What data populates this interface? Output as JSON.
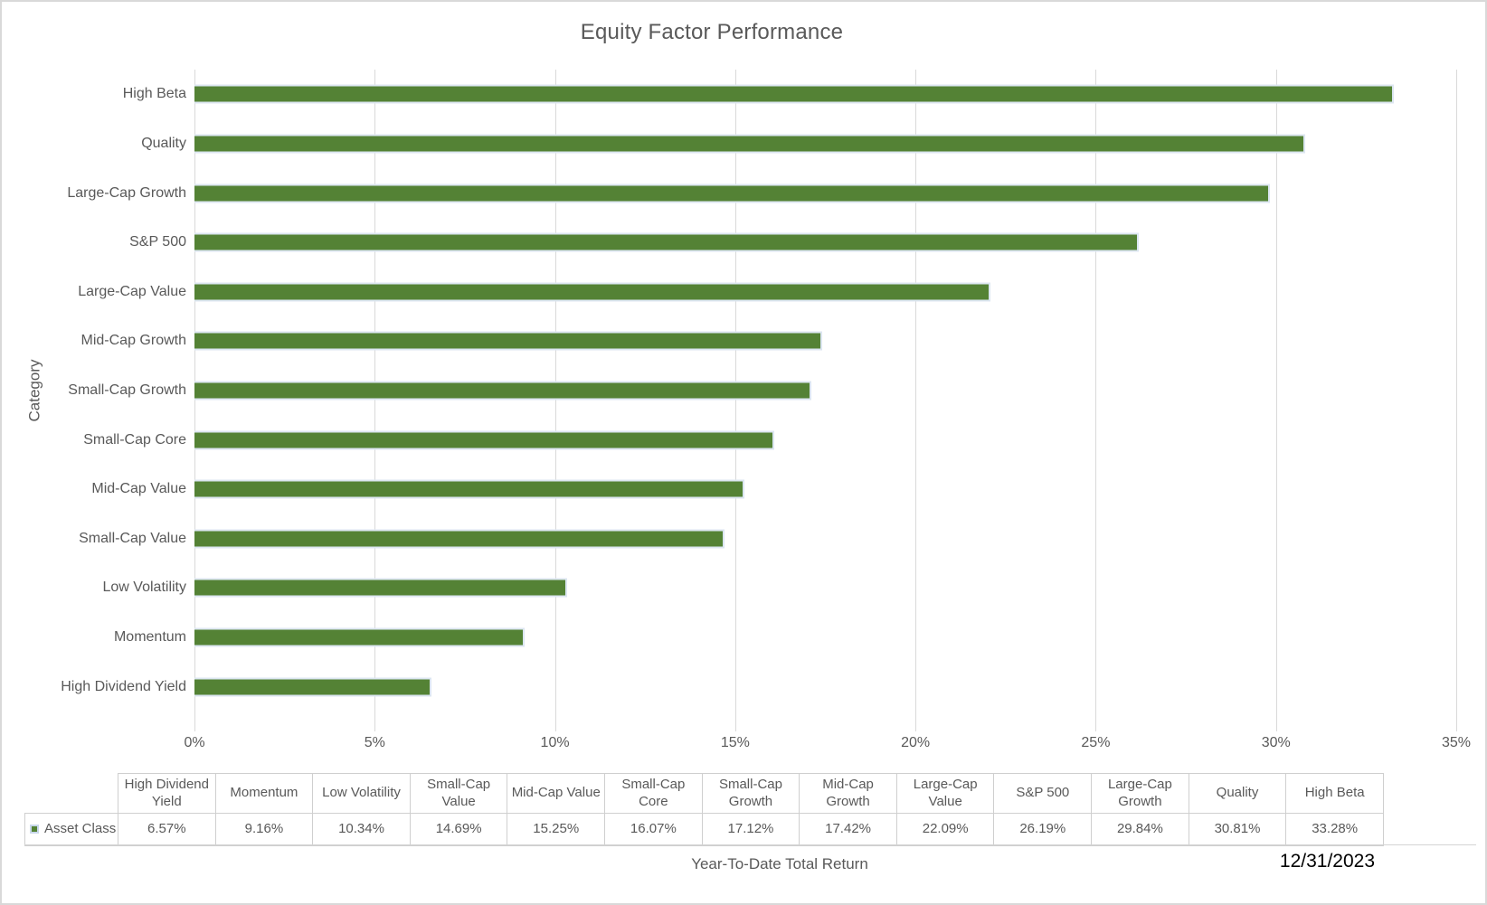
{
  "chart_data": {
    "type": "bar",
    "orientation": "horizontal",
    "title": "Equity Factor Performance",
    "xlabel": "Year-To-Date Total Return",
    "ylabel": "Category",
    "series_name": "Asset Class",
    "categories": [
      "High Beta",
      "Quality",
      "Large-Cap Growth",
      "S&P 500",
      "Large-Cap Value",
      "Mid-Cap Growth",
      "Small-Cap Growth",
      "Small-Cap Core",
      "Mid-Cap Value",
      "Small-Cap Value",
      "Low Volatility",
      "Momentum",
      "High Dividend Yield"
    ],
    "values": [
      33.28,
      30.81,
      29.84,
      26.19,
      22.09,
      17.42,
      17.12,
      16.07,
      15.25,
      14.69,
      10.34,
      9.16,
      6.57
    ],
    "xlim": [
      0,
      35
    ],
    "x_ticks": [
      "0%",
      "5%",
      "10%",
      "15%",
      "20%",
      "25%",
      "30%",
      "35%"
    ],
    "gridlines": true,
    "legend_position": "table-left"
  },
  "table": {
    "legend_label": "Asset Class",
    "columns": [
      {
        "label": "High Dividend Yield",
        "value": "6.57%"
      },
      {
        "label": "Momentum",
        "value": "9.16%"
      },
      {
        "label": "Low Volatility",
        "value": "10.34%"
      },
      {
        "label": "Small-Cap Value",
        "value": "14.69%"
      },
      {
        "label": "Mid-Cap Value",
        "value": "15.25%"
      },
      {
        "label": "Small-Cap Core",
        "value": "16.07%"
      },
      {
        "label": "Small-Cap Growth",
        "value": "17.12%"
      },
      {
        "label": "Mid-Cap Growth",
        "value": "17.42%"
      },
      {
        "label": "Large-Cap Value",
        "value": "22.09%"
      },
      {
        "label": "S&P 500",
        "value": "26.19%"
      },
      {
        "label": "Large-Cap Growth",
        "value": "29.84%"
      },
      {
        "label": "Quality",
        "value": "30.81%"
      },
      {
        "label": "High Beta",
        "value": "33.28%"
      }
    ]
  },
  "footer": {
    "axis_title": "Year-To-Date Total Return",
    "date": "12/31/2023"
  },
  "colors": {
    "bar": "#548235",
    "bar_border": "#dce6f1",
    "grid": "#d9d9d9",
    "text": "#595959",
    "date_text": "#000000"
  }
}
